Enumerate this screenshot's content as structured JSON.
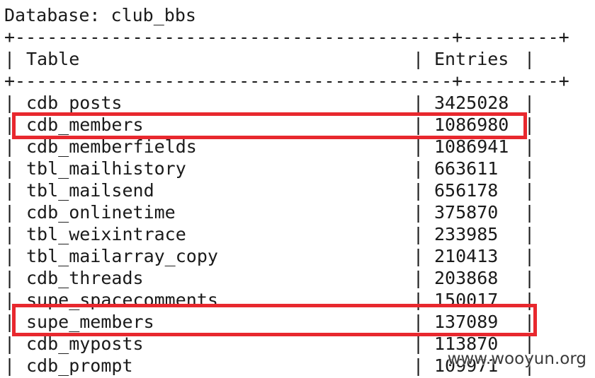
{
  "header": {
    "database_label": "Database: club_bbs"
  },
  "table": {
    "border_top": "+-----------------------------------------+---------+",
    "border_mid": "+-----------------------------------------+---------+",
    "column_headers": {
      "table": "Table",
      "entries": "Entries"
    },
    "rows": [
      {
        "name": "cdb_posts",
        "entries": "3425028"
      },
      {
        "name": "cdb_members",
        "entries": "1086980"
      },
      {
        "name": "cdb_memberfields",
        "entries": "1086941"
      },
      {
        "name": "tbl_mailhistory",
        "entries": "663611"
      },
      {
        "name": "tbl_mailsend",
        "entries": "656178"
      },
      {
        "name": "cdb_onlinetime",
        "entries": "375870"
      },
      {
        "name": "tbl_weixintrace",
        "entries": "233985"
      },
      {
        "name": "tbl_mailarray_copy",
        "entries": "210413"
      },
      {
        "name": "cdb_threads",
        "entries": "203868"
      },
      {
        "name": "supe_spacecomments",
        "entries": "150017"
      },
      {
        "name": "supe_members",
        "entries": "137089"
      },
      {
        "name": "cdb_myposts",
        "entries": "113870"
      },
      {
        "name": "cdb_prompt",
        "entries": "109971"
      }
    ]
  },
  "highlights": {
    "color": "#e8282e",
    "rows": [
      "cdb_members",
      "supe_members"
    ]
  },
  "watermark": {
    "text": "www.wooyun.org"
  }
}
